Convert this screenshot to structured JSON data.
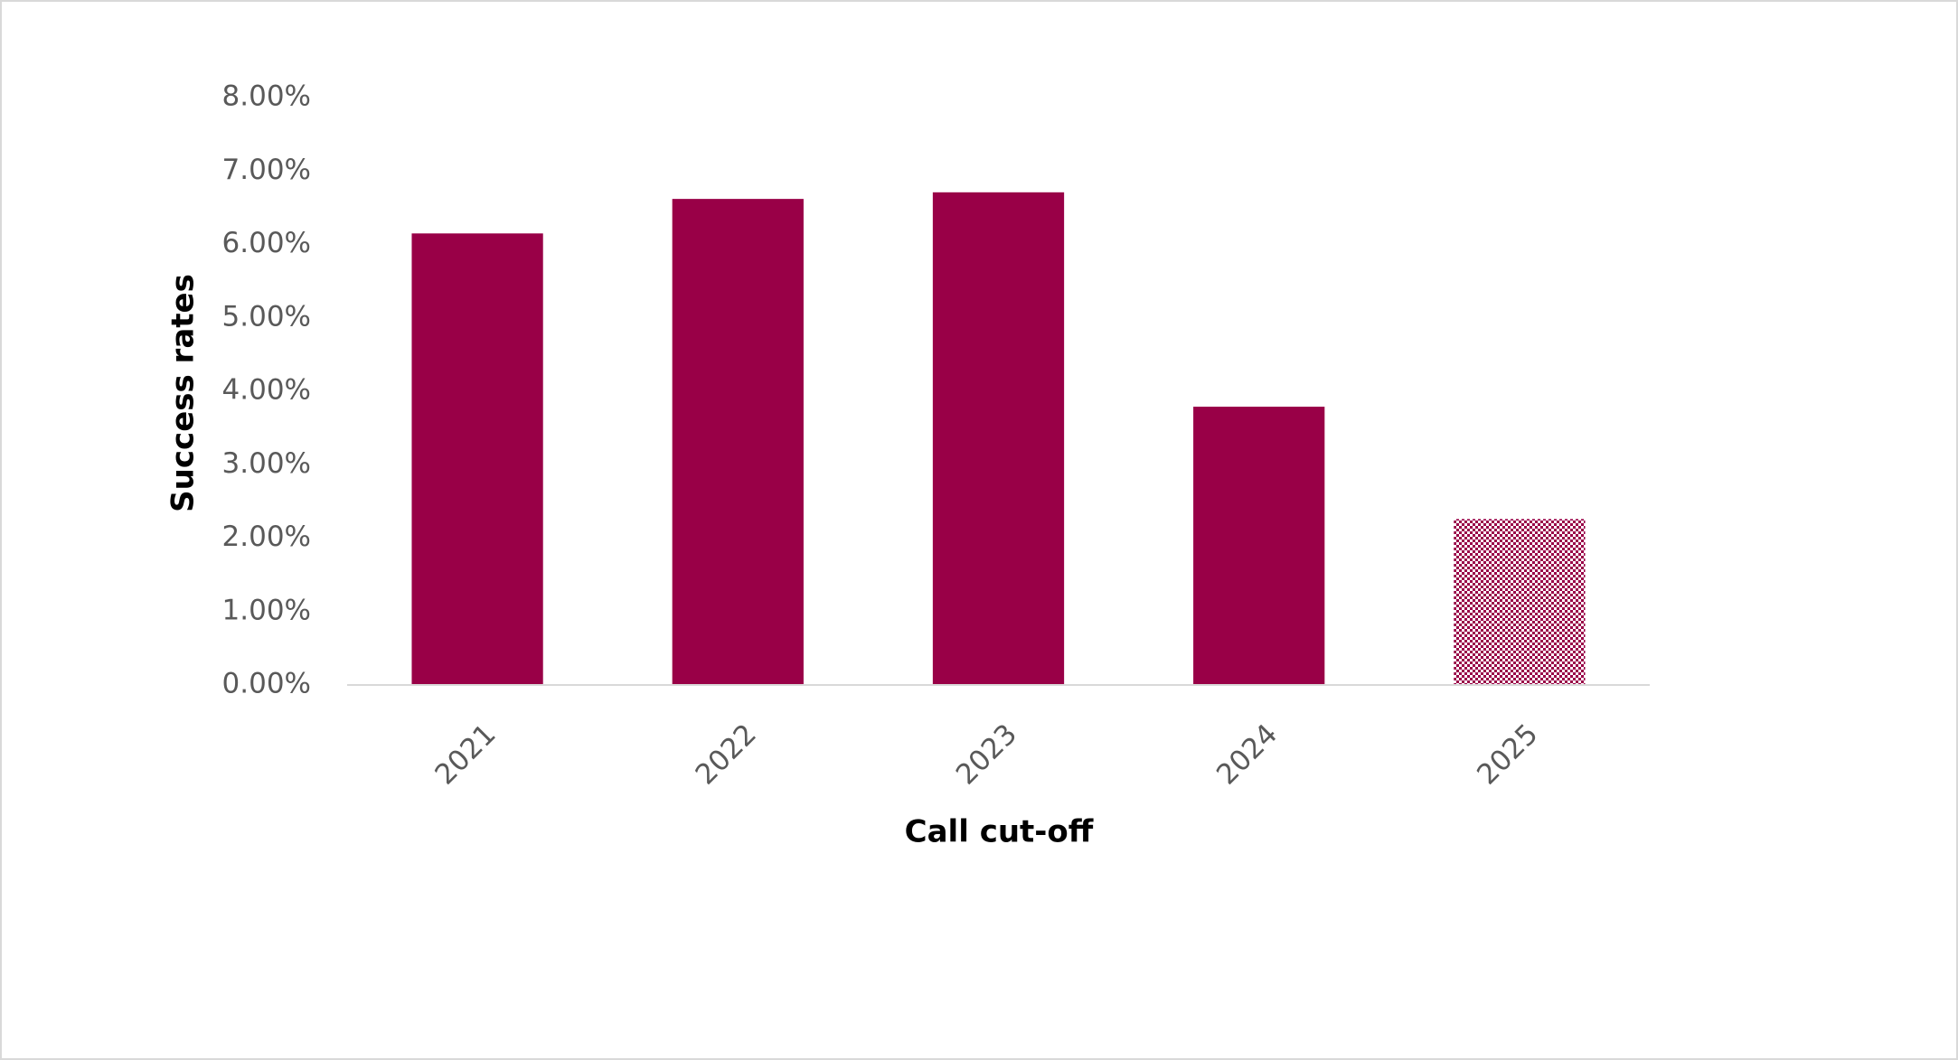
{
  "chart_data": {
    "type": "bar",
    "x_label": "Call cut-off",
    "y_label": "Success rates",
    "categories": [
      "2021",
      "2022",
      "2023",
      "2024",
      "2025"
    ],
    "values": [
      6.15,
      6.62,
      6.71,
      3.79,
      2.26
    ],
    "color": "#990047",
    "bar_fills": [
      "solid",
      "solid",
      "solid",
      "solid",
      "checker"
    ],
    "ylim": [
      0,
      8
    ],
    "yticks": [
      {
        "value": 0,
        "label": "0.00%"
      },
      {
        "value": 1,
        "label": "1.00%"
      },
      {
        "value": 2,
        "label": "2.00%"
      },
      {
        "value": 3,
        "label": "3.00%"
      },
      {
        "value": 4,
        "label": "4.00%"
      },
      {
        "value": 5,
        "label": "5.00%"
      },
      {
        "value": 6,
        "label": "6.00%"
      },
      {
        "value": 7,
        "label": "7.00%"
      },
      {
        "value": 8,
        "label": "8.00%"
      }
    ],
    "grid": false
  }
}
